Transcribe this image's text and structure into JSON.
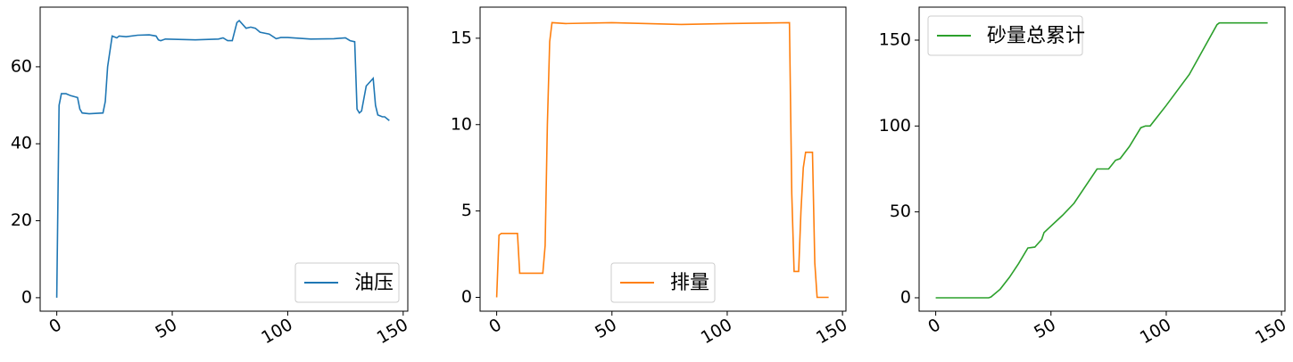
{
  "chart_data": [
    {
      "type": "line",
      "x": [
        0,
        1,
        2,
        4,
        6,
        9,
        10,
        11,
        14,
        20,
        21,
        22,
        24,
        26,
        27,
        30,
        35,
        40,
        43,
        44,
        45,
        47,
        60,
        70,
        72,
        74,
        76,
        78,
        79,
        82,
        84,
        86,
        88,
        92,
        95,
        97,
        100,
        110,
        120,
        125,
        127,
        129,
        130,
        131,
        132,
        134,
        137,
        138,
        139,
        141,
        142,
        144
      ],
      "series": [
        {
          "name": "油压",
          "color": "#1f77b4",
          "values": [
            0,
            50,
            53,
            53,
            52.5,
            52,
            49,
            48,
            47.8,
            48,
            51,
            60,
            68,
            67.5,
            68,
            67.8,
            68.2,
            68.3,
            68,
            67,
            66.8,
            67.2,
            67,
            67.2,
            67.5,
            66.8,
            66.8,
            71.5,
            72,
            70,
            70.3,
            70,
            69,
            68.5,
            67.3,
            67.6,
            67.6,
            67.2,
            67.3,
            67.5,
            66.8,
            66.5,
            49,
            48,
            48.5,
            55,
            57,
            50,
            47.5,
            47,
            47,
            46
          ]
        }
      ],
      "xlim": [
        -7.2,
        152
      ],
      "ylim": [
        -3.5,
        75.5
      ],
      "xticks": [
        0,
        50,
        100,
        150
      ],
      "yticks": [
        0,
        20,
        40,
        60
      ],
      "legend": "lower right"
    },
    {
      "type": "line",
      "x": [
        0,
        1,
        2,
        9,
        10,
        20,
        21,
        22,
        23,
        24,
        30,
        50,
        80,
        100,
        127,
        128,
        129,
        131,
        132,
        133,
        134,
        137,
        138,
        139,
        144
      ],
      "series": [
        {
          "name": "排量",
          "color": "#ff7f0e",
          "values": [
            0,
            3.6,
            3.7,
            3.7,
            1.4,
            1.4,
            3,
            10,
            14.8,
            15.9,
            15.85,
            15.9,
            15.8,
            15.85,
            15.9,
            6,
            1.5,
            1.5,
            5,
            7.5,
            8.4,
            8.4,
            2,
            0,
            0
          ]
        }
      ],
      "xlim": [
        -7.2,
        151.5
      ],
      "ylim": [
        -0.8,
        16.8
      ],
      "xticks": [
        0,
        50,
        100,
        150
      ],
      "yticks": [
        0,
        5,
        10,
        15
      ],
      "legend": "lower center"
    },
    {
      "type": "line",
      "x": [
        0,
        23,
        24,
        28,
        32,
        36,
        40,
        43,
        46,
        47,
        55,
        60,
        70,
        75,
        78,
        80,
        84,
        89,
        91,
        93,
        100,
        110,
        122,
        123,
        144
      ],
      "series": [
        {
          "name": "砂量总累计",
          "color": "#2ca02c",
          "values": [
            0,
            0,
            0.5,
            5,
            12,
            20,
            29,
            29.5,
            34,
            38,
            48,
            55,
            75,
            75,
            80,
            81,
            88,
            99,
            100,
            100,
            112,
            130,
            159,
            160,
            160
          ]
        }
      ],
      "xlim": [
        -7.2,
        151.5
      ],
      "ylim": [
        -7.8,
        169.2
      ],
      "xticks": [
        0,
        50,
        100,
        150
      ],
      "yticks": [
        0,
        50,
        100,
        150
      ],
      "legend": "upper left"
    }
  ]
}
